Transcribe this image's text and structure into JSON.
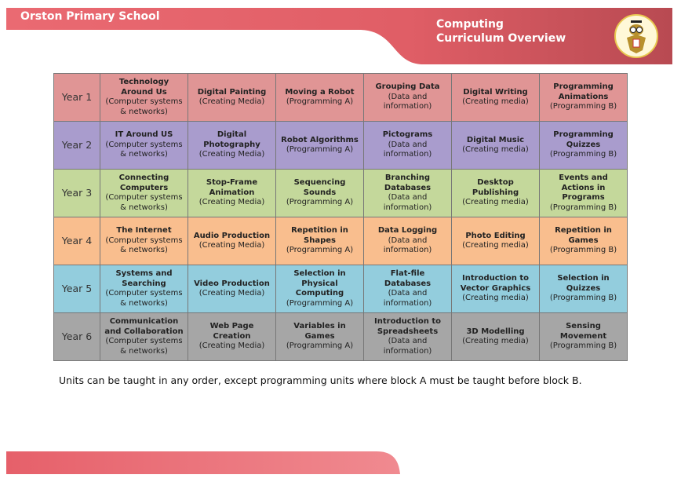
{
  "header": {
    "school": "Orston Primary School",
    "title_line1": "Computing",
    "title_line2": "Curriculum Overview"
  },
  "colors": {
    "banner": "#e8626a",
    "year1": "#e09595",
    "year2": "#a99ccd",
    "year3": "#c4d89b",
    "year4": "#f9be8e",
    "year5": "#93cddd",
    "year6": "#a6a6a6"
  },
  "rows": [
    {
      "year": "Year 1",
      "cells": [
        {
          "title": "Technology Around Us",
          "strand": "(Computer systems & networks)"
        },
        {
          "title": "Digital Painting",
          "strand": "(Creating Media)"
        },
        {
          "title": "Moving a Robot",
          "strand": "(Programming A)"
        },
        {
          "title": "Grouping Data",
          "strand": "(Data and information)"
        },
        {
          "title": "Digital Writing",
          "strand": "(Creating media)"
        },
        {
          "title": "Programming Animations",
          "strand": "(Programming B)"
        }
      ]
    },
    {
      "year": "Year 2",
      "cells": [
        {
          "title": "IT Around US",
          "strand": "(Computer systems & networks)"
        },
        {
          "title": "Digital Photography",
          "strand": "(Creating Media)"
        },
        {
          "title": "Robot Algorithms",
          "strand": "(Programming A)"
        },
        {
          "title": "Pictograms",
          "strand": "(Data and information)"
        },
        {
          "title": "Digital Music",
          "strand": "(Creating media)"
        },
        {
          "title": "Programming Quizzes",
          "strand": "(Programming B)"
        }
      ]
    },
    {
      "year": "Year 3",
      "cells": [
        {
          "title": "Connecting Computers",
          "strand": "(Computer systems & networks)"
        },
        {
          "title": "Stop-Frame Animation",
          "strand": "(Creating Media)"
        },
        {
          "title": "Sequencing Sounds",
          "strand": "(Programming A)"
        },
        {
          "title": "Branching Databases",
          "strand": "(Data and information)"
        },
        {
          "title": "Desktop Publishing",
          "strand": "(Creating media)"
        },
        {
          "title": "Events and Actions in Programs",
          "strand": "(Programming B)"
        }
      ]
    },
    {
      "year": "Year 4",
      "cells": [
        {
          "title": "The Internet",
          "strand": "(Computer systems & networks)"
        },
        {
          "title": "Audio Production",
          "strand": "(Creating Media)"
        },
        {
          "title": "Repetition in Shapes",
          "strand": "(Programming A)"
        },
        {
          "title": "Data Logging",
          "strand": "(Data and information)"
        },
        {
          "title": "Photo Editing",
          "strand": "(Creating media)"
        },
        {
          "title": "Repetition in Games",
          "strand": "(Programming B)"
        }
      ]
    },
    {
      "year": "Year 5",
      "cells": [
        {
          "title": "Systems and Searching",
          "strand": "(Computer systems & networks)"
        },
        {
          "title": "Video Production",
          "strand": "(Creating Media)"
        },
        {
          "title": "Selection in Physical Computing",
          "strand": "(Programming A)"
        },
        {
          "title": "Flat-file Databases",
          "strand": "(Data and information)"
        },
        {
          "title": "Introduction to Vector Graphics",
          "strand": "(Creating media)"
        },
        {
          "title": "Selection in Quizzes",
          "strand": "(Programming B)"
        }
      ]
    },
    {
      "year": "Year 6",
      "cells": [
        {
          "title": "Communication and Collaboration",
          "strand": "(Computer systems & networks)"
        },
        {
          "title": "Web Page Creation",
          "strand": "(Creating Media)"
        },
        {
          "title": "Variables in Games",
          "strand": "(Programming A)"
        },
        {
          "title": "Introduction to Spreadsheets",
          "strand": "(Data and information)"
        },
        {
          "title": "3D Modelling",
          "strand": "(Creating media)"
        },
        {
          "title": "Sensing Movement",
          "strand": "(Programming B)"
        }
      ]
    }
  ],
  "note": "Units can be taught in any order, except programming units where block A must be taught before block B."
}
